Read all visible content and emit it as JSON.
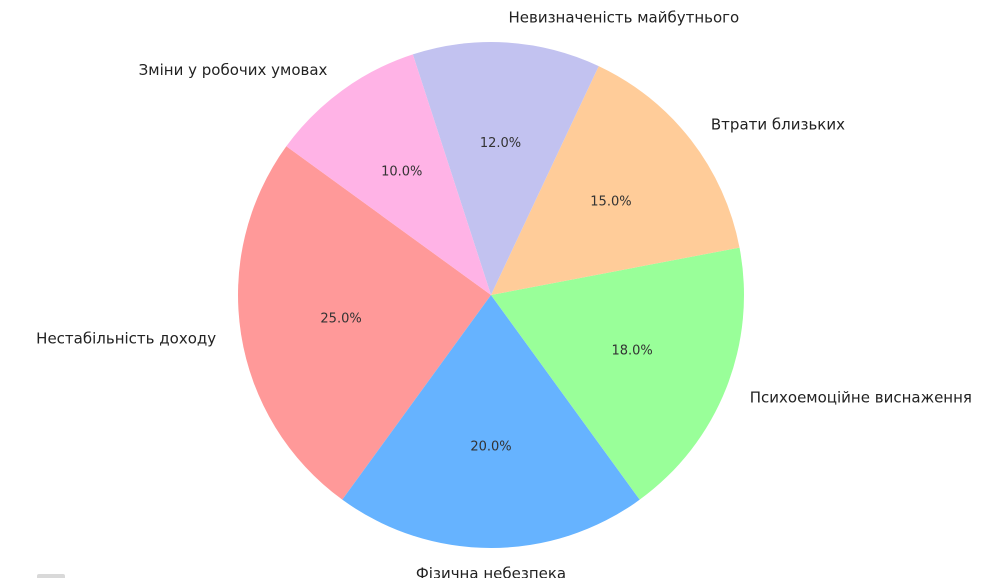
{
  "chart_data": {
    "type": "pie",
    "title": "",
    "start_angle_deg": 144,
    "direction": "counterclockwise",
    "slices": [
      {
        "label": "Нестабільність доходу",
        "value": 25.0,
        "display": "25.0%",
        "color": "#ff9999"
      },
      {
        "label": "Фізична небезпека",
        "value": 20.0,
        "display": "20.0%",
        "color": "#66b3ff"
      },
      {
        "label": "Психоемоційне виснаження",
        "value": 18.0,
        "display": "18.0%",
        "color": "#99ff99"
      },
      {
        "label": "Втрати близьких",
        "value": 15.0,
        "display": "15.0%",
        "color": "#ffcc99"
      },
      {
        "label": "Невизначеність майбутнього",
        "value": 12.0,
        "display": "12.0%",
        "color": "#c2c2f0"
      },
      {
        "label": "Зміни у робочих умовах",
        "value": 10.0,
        "display": "10.0%",
        "color": "#ffb3e6"
      }
    ]
  }
}
